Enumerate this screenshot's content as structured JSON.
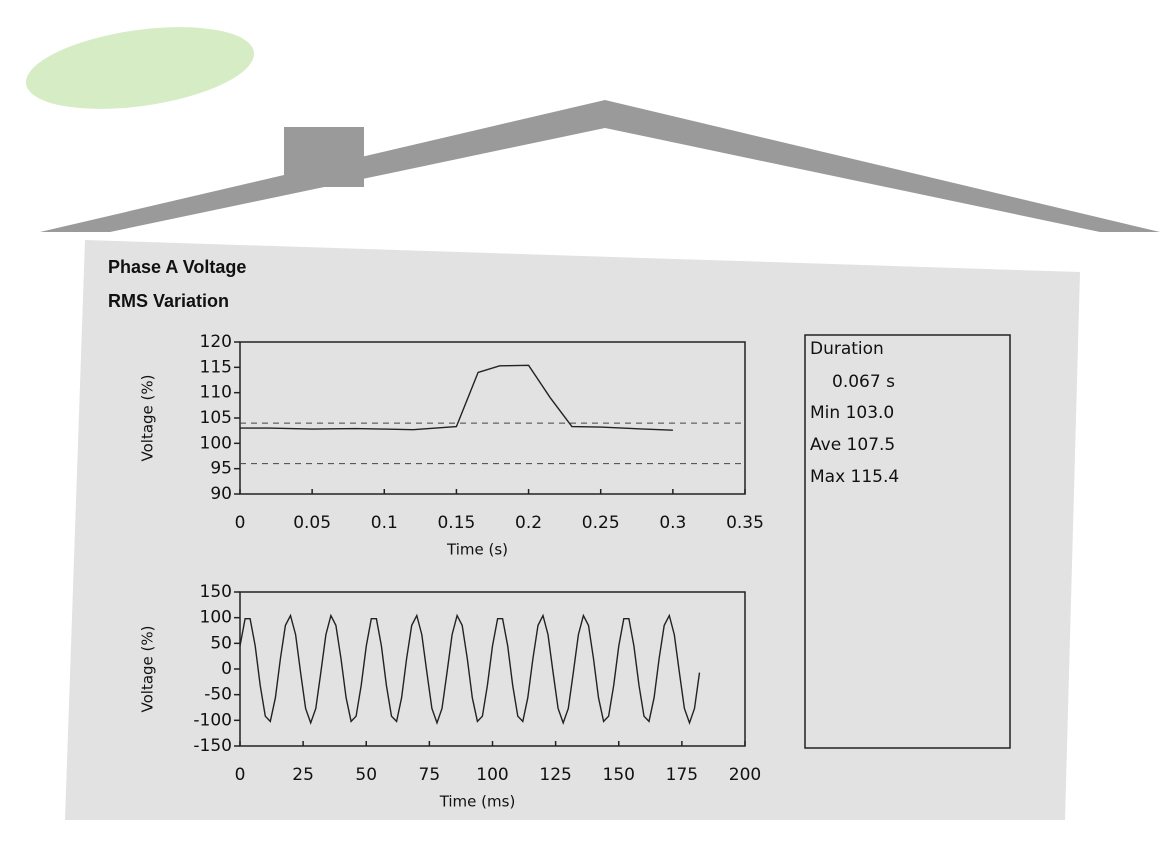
{
  "header": {
    "title": "Phase A Voltage",
    "subtitle": "RMS Variation"
  },
  "chart_data": [
    {
      "type": "line",
      "x_label": "Time (s)",
      "y_label": "Voltage (%)",
      "color": "#222",
      "x": [
        0,
        0.02,
        0.05,
        0.08,
        0.1,
        0.12,
        0.15,
        0.165,
        0.18,
        0.2,
        0.215,
        0.23,
        0.25,
        0.28,
        0.3
      ],
      "values": [
        103,
        103,
        102.8,
        102.9,
        102.8,
        102.7,
        103.3,
        114,
        115.3,
        115.4,
        109,
        103.3,
        103.2,
        102.8,
        102.6
      ],
      "hlines": [
        104,
        96
      ],
      "xlim": [
        0,
        0.35
      ],
      "xticks": [
        0,
        0.05,
        0.1,
        0.15,
        0.2,
        0.25,
        0.3,
        0.35
      ],
      "ylim": [
        90,
        120
      ],
      "yticks": [
        90,
        95,
        100,
        105,
        110,
        115,
        120
      ]
    },
    {
      "type": "line",
      "x_label": "Time (ms)",
      "y_label": "Voltage (%)",
      "color": "#222",
      "x": [
        0,
        2,
        4,
        6,
        8,
        10,
        12,
        14,
        16,
        18,
        20,
        22,
        24,
        26,
        28,
        30,
        32,
        34,
        36,
        38,
        40,
        42,
        44,
        46,
        48,
        50,
        52,
        54,
        56,
        58,
        60,
        62,
        64,
        66,
        68,
        70,
        72,
        74,
        76,
        78,
        80,
        82,
        84,
        86,
        88,
        90,
        92,
        94,
        96,
        98,
        100,
        102,
        104,
        106,
        108,
        110,
        112,
        114,
        116,
        118,
        120,
        122,
        124,
        126,
        128,
        130,
        132,
        134,
        136,
        138,
        140,
        142,
        144,
        146,
        148,
        150,
        152,
        154,
        156,
        158,
        160,
        162,
        164,
        166,
        168,
        170,
        172,
        174,
        176,
        178,
        180,
        182
      ],
      "values": [
        45,
        98,
        98,
        45,
        -32,
        -92,
        -102,
        -56,
        20,
        85,
        104,
        67,
        -7,
        -77,
        -105,
        -77,
        -7,
        67,
        104,
        85,
        20,
        -56,
        -102,
        -92,
        -32,
        45,
        98,
        98,
        45,
        -32,
        -92,
        -102,
        -56,
        20,
        85,
        104,
        67,
        -7,
        -77,
        -105,
        -77,
        -7,
        67,
        104,
        85,
        20,
        -56,
        -102,
        -92,
        -32,
        45,
        98,
        98,
        45,
        -32,
        -92,
        -102,
        -56,
        20,
        85,
        104,
        67,
        -7,
        -77,
        -105,
        -77,
        -7,
        67,
        104,
        85,
        20,
        -56,
        -102,
        -92,
        -32,
        45,
        98,
        98,
        45,
        -32,
        -92,
        -102,
        -56,
        20,
        85,
        104,
        67,
        -7,
        -77,
        -105,
        -77,
        -7
      ],
      "xlim": [
        0,
        200
      ],
      "xticks": [
        0,
        25,
        50,
        75,
        100,
        125,
        150,
        175,
        200
      ],
      "ylim": [
        -150,
        150
      ],
      "yticks": [
        -150,
        -100,
        -50,
        0,
        50,
        100,
        150
      ]
    }
  ],
  "summary": {
    "lines": [
      "Duration",
      "0.067 s",
      "Min 103.0",
      "Ave 107.5",
      "Max 115.4"
    ]
  }
}
